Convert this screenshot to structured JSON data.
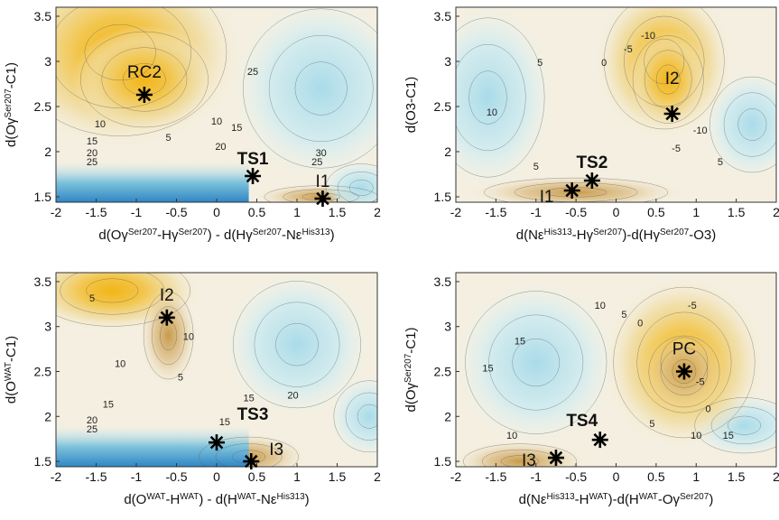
{
  "chart_data": [
    {
      "type": "contour",
      "xlabel": [
        {
          "text": "d(Oγ"
        },
        {
          "sup": "Ser207"
        },
        {
          "text": "-Hγ"
        },
        {
          "sup": "Ser207"
        },
        {
          "text": ") - d(Hγ"
        },
        {
          "sup": "Ser207"
        },
        {
          "text": "-Nε"
        },
        {
          "sup": "His313"
        },
        {
          "text": ")"
        }
      ],
      "ylabel": [
        {
          "text": "d(Oγ"
        },
        {
          "sup": "Ser207"
        },
        {
          "text": "-C1)"
        }
      ],
      "xlim": [
        -2,
        2
      ],
      "ylim": [
        1.44,
        3.6
      ],
      "xticks": [
        -2,
        -1.5,
        -1,
        -0.5,
        0,
        0.5,
        1,
        1.5,
        2
      ],
      "yticks": [
        1.5,
        2,
        2.5,
        3,
        3.5
      ],
      "points": [
        {
          "label": "RC2",
          "x": -0.9,
          "y": 2.63
        },
        {
          "label": "TS1",
          "x": 0.45,
          "y": 1.73,
          "bold": true
        },
        {
          "label": "I1",
          "x": 1.32,
          "y": 1.48
        }
      ],
      "contour_labels": [
        25,
        10,
        10,
        15,
        5,
        15,
        20,
        20,
        25,
        30,
        25
      ]
    },
    {
      "type": "contour",
      "xlabel": [
        {
          "text": "d(Nε"
        },
        {
          "sup": "His313"
        },
        {
          "text": "-Hγ"
        },
        {
          "sup": "Ser207"
        },
        {
          "text": ")-d(Hγ"
        },
        {
          "sup": "Ser207"
        },
        {
          "text": "-O3)"
        }
      ],
      "ylabel": [
        {
          "text": "d(O3-C1)"
        }
      ],
      "xlim": [
        -2,
        2
      ],
      "ylim": [
        1.44,
        3.6
      ],
      "xticks": [
        -2,
        -1.5,
        -1,
        -0.5,
        0,
        0.5,
        1,
        1.5,
        2
      ],
      "yticks": [
        1.5,
        2,
        2.5,
        3,
        3.5
      ],
      "points": [
        {
          "label": "I2",
          "x": 0.7,
          "y": 2.42
        },
        {
          "label": "TS2",
          "x": -0.3,
          "y": 1.68,
          "bold": true
        },
        {
          "label": "I1",
          "x": -0.55,
          "y": 1.57
        }
      ],
      "contour_labels": [
        10,
        5,
        0,
        -5,
        -10,
        -10,
        -5,
        5,
        5
      ]
    },
    {
      "type": "contour",
      "xlabel": [
        {
          "text": "d(O"
        },
        {
          "sup": "WAT"
        },
        {
          "text": "-H"
        },
        {
          "sup": "WAT"
        },
        {
          "text": ") - d(H"
        },
        {
          "sup": "WAT"
        },
        {
          "text": "-Nε"
        },
        {
          "sup": "His313"
        },
        {
          "text": ")"
        }
      ],
      "ylabel": [
        {
          "text": "d(O"
        },
        {
          "sup": "WAT"
        },
        {
          "text": "-C1)"
        }
      ],
      "xlim": [
        -2,
        2
      ],
      "ylim": [
        1.44,
        3.6
      ],
      "xticks": [
        -2,
        -1.5,
        -1,
        -0.5,
        0,
        0.5,
        1,
        1.5,
        2
      ],
      "yticks": [
        1.5,
        2,
        2.5,
        3,
        3.5
      ],
      "points": [
        {
          "label": "I2",
          "x": -0.62,
          "y": 3.1
        },
        {
          "label": "TS3",
          "x": 0,
          "y": 1.71,
          "bold": true
        },
        {
          "label": "I3",
          "x": 0.43,
          "y": 1.5
        }
      ],
      "contour_labels": [
        5,
        10,
        5,
        10,
        15,
        15,
        15,
        20,
        25,
        20
      ]
    },
    {
      "type": "contour",
      "xlabel": [
        {
          "text": "d(Nε"
        },
        {
          "sup": "His313"
        },
        {
          "text": "-H"
        },
        {
          "sup": "WAT"
        },
        {
          "text": ")-d(H"
        },
        {
          "sup": "WAT"
        },
        {
          "text": "-Oγ"
        },
        {
          "sup": "Ser207"
        },
        {
          "text": ")"
        }
      ],
      "ylabel": [
        {
          "text": "d(Oγ"
        },
        {
          "sup": "Ser207"
        },
        {
          "text": "-C1)"
        }
      ],
      "xlim": [
        -2,
        2
      ],
      "ylim": [
        1.44,
        3.6
      ],
      "xticks": [
        -2,
        -1.5,
        -1,
        -0.5,
        0,
        0.5,
        1,
        1.5,
        2
      ],
      "yticks": [
        1.5,
        2,
        2.5,
        3,
        3.5
      ],
      "points": [
        {
          "label": "PC",
          "x": 0.85,
          "y": 2.5
        },
        {
          "label": "TS4",
          "x": -0.2,
          "y": 1.74,
          "bold": true
        },
        {
          "label": "I3",
          "x": -0.75,
          "y": 1.54
        }
      ],
      "contour_labels": [
        15,
        10,
        5,
        0,
        -5,
        15,
        -5,
        0,
        5,
        10,
        15,
        10
      ]
    }
  ]
}
